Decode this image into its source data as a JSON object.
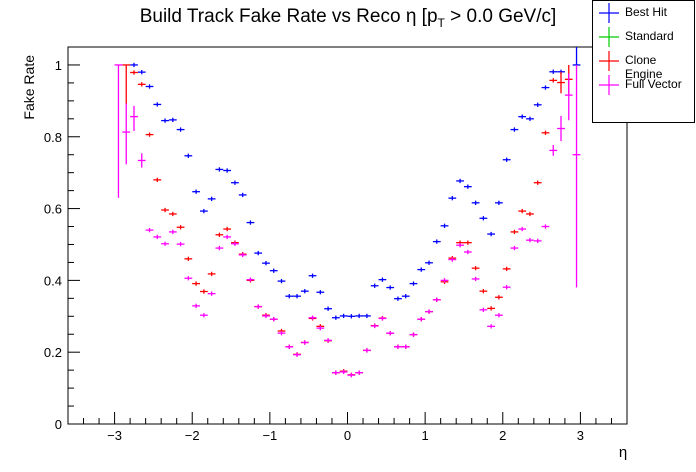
{
  "chart_data": {
    "type": "scatter",
    "title_main": "Build Track Fake Rate vs Reco η [p",
    "title_sub": "T",
    "title_end": " > 0.0 GeV/c]",
    "xlabel": "η",
    "ylabel": "Fake Rate",
    "xlim": [
      -3.6,
      3.6
    ],
    "ylim": [
      0,
      1.05
    ],
    "xticks": [
      -3,
      -2,
      -1,
      0,
      1,
      2,
      3
    ],
    "xtick_labels": [
      "−3",
      "−2",
      "−1",
      "0",
      "1",
      "2",
      "3"
    ],
    "yticks": [
      0,
      0.2,
      0.4,
      0.6,
      0.8,
      1
    ],
    "ytick_labels": [
      "0",
      "0.2",
      "0.4",
      "0.6",
      "0.8",
      "1"
    ],
    "grid": false,
    "legend_position": "top-right",
    "bin_width": 0.1,
    "x": [
      -2.95,
      -2.85,
      -2.75,
      -2.65,
      -2.55,
      -2.45,
      -2.35,
      -2.25,
      -2.15,
      -2.05,
      -1.95,
      -1.85,
      -1.75,
      -1.65,
      -1.55,
      -1.45,
      -1.35,
      -1.25,
      -1.15,
      -1.05,
      -0.95,
      -0.85,
      -0.75,
      -0.65,
      -0.55,
      -0.45,
      -0.35,
      -0.25,
      -0.15,
      -0.05,
      0.05,
      0.15,
      0.25,
      0.35,
      0.45,
      0.55,
      0.65,
      0.75,
      0.85,
      0.95,
      1.05,
      1.15,
      1.25,
      1.35,
      1.45,
      1.55,
      1.65,
      1.75,
      1.85,
      1.95,
      2.05,
      2.15,
      2.25,
      2.35,
      2.45,
      2.55,
      2.65,
      2.75,
      2.85,
      2.95
    ],
    "series": [
      {
        "name": "Best Hit",
        "color": "#0000ff",
        "values": [
          null,
          null,
          1.0,
          0.98,
          0.94,
          0.89,
          0.845,
          0.847,
          0.82,
          0.747,
          0.647,
          0.593,
          0.627,
          0.709,
          0.706,
          0.672,
          0.638,
          0.561,
          0.476,
          0.448,
          0.427,
          0.398,
          0.356,
          0.356,
          0.37,
          0.413,
          0.367,
          0.321,
          0.296,
          0.301,
          0.3,
          0.301,
          0.301,
          0.385,
          0.402,
          0.38,
          0.349,
          0.356,
          0.391,
          0.43,
          0.449,
          0.508,
          0.552,
          0.629,
          0.677,
          0.661,
          0.616,
          0.573,
          0.529,
          0.616,
          0.736,
          0.82,
          0.856,
          0.85,
          0.889,
          0.937,
          0.981,
          0.981,
          null,
          1.0
        ],
        "errors": {
          "59": [
            0.0,
            0.13
          ]
        }
      },
      {
        "name": "Standard",
        "color": "#00cc00",
        "values": []
      },
      {
        "name": "Clone Engine",
        "color": "#ff0000",
        "values": [
          null,
          1.0,
          0.979,
          0.946,
          0.806,
          0.68,
          0.596,
          0.585,
          0.548,
          0.46,
          0.391,
          0.369,
          0.418,
          0.527,
          0.543,
          0.505,
          0.473,
          0.4,
          0.327,
          0.303,
          0.292,
          0.259,
          0.215,
          0.194,
          0.227,
          0.294,
          0.272,
          0.232,
          0.143,
          0.147,
          0.137,
          0.143,
          0.205,
          0.274,
          0.295,
          0.253,
          0.215,
          0.215,
          0.249,
          0.292,
          0.313,
          0.346,
          0.396,
          0.462,
          0.505,
          0.505,
          0.434,
          0.37,
          0.322,
          0.353,
          0.432,
          0.535,
          0.593,
          0.585,
          0.672,
          0.811,
          0.957,
          0.951,
          0.96,
          null
        ],
        "errors": {
          "1": [
            0.11,
            0.0
          ],
          "57": [
            0.03,
            0.03
          ],
          "58": [
            0.04,
            0.04
          ]
        }
      },
      {
        "name": "Full Vector",
        "color": "#ff00ff",
        "values": [
          1.0,
          0.813,
          0.856,
          0.734,
          0.54,
          0.521,
          0.502,
          0.535,
          0.501,
          0.406,
          0.329,
          0.303,
          0.363,
          0.49,
          0.521,
          0.502,
          0.471,
          0.402,
          0.327,
          0.301,
          0.292,
          0.253,
          0.215,
          0.193,
          0.227,
          0.296,
          0.267,
          0.233,
          0.143,
          0.145,
          0.136,
          0.143,
          0.205,
          0.273,
          0.294,
          0.253,
          0.215,
          0.215,
          0.249,
          0.292,
          0.313,
          0.346,
          0.4,
          0.458,
          0.498,
          0.479,
          0.404,
          0.318,
          0.272,
          0.303,
          0.381,
          0.49,
          0.543,
          0.512,
          0.51,
          0.55,
          0.762,
          0.823,
          0.916,
          0.75
        ],
        "errors": {
          "0": [
            0.37,
            0.0
          ],
          "1": [
            0.09,
            0.08
          ],
          "2": [
            0.04,
            0.03
          ],
          "3": [
            0.02,
            0.02
          ],
          "56": [
            0.015,
            0.015
          ],
          "57": [
            0.035,
            0.035
          ],
          "58": [
            0.07,
            0.06
          ],
          "59": [
            0.37,
            0.25
          ]
        }
      }
    ]
  }
}
